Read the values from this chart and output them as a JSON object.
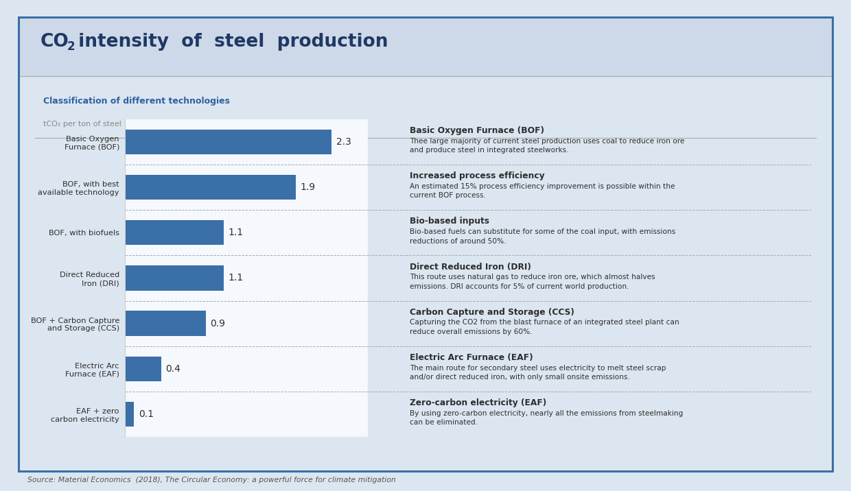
{
  "title_part1": "CO",
  "title_sub": "2",
  "title_part2": " intensity  of  steel  production",
  "subtitle": "Classification of different technologies",
  "subtitle2": "tCO₂ per ton of steel",
  "categories": [
    "Basic Oxygen\nFurnace (BOF)",
    "BOF, with best\navailable technology",
    "BOF, with biofuels",
    "Direct Reduced\nIron (DRI)",
    "BOF + Carbon Capture\nand Storage (CCS)",
    "Electric Arc\nFurnace (EAF)",
    "EAF + zero\ncarbon electricity"
  ],
  "values": [
    2.3,
    1.9,
    1.1,
    1.1,
    0.9,
    0.4,
    0.1
  ],
  "bar_color": "#3a6fa8",
  "bg_outer": "#dce6f0",
  "bg_inner": "#f5f8fc",
  "title_color": "#1f3864",
  "subtitle_color": "#2e5fa3",
  "subtitle2_color": "#888888",
  "source_text": "Source: Material Economics  (2018), The Circular Economy: a powerful force for climate mitigation",
  "right_titles": [
    "Basic Oxygen Furnace (BOF)",
    "Increased process efficiency",
    "Bio-based inputs",
    "Direct Reduced Iron (DRI)",
    "Carbon Capture and Storage (CCS)",
    "Electric Arc Furnace (EAF)",
    "Zero-carbon electricity (EAF)"
  ],
  "right_descriptions": [
    "Thee large majority of current steel production uses coal to reduce iron ore\nand produce steel in integrated steelworks.",
    "An estimated 15% process efficiency improvement is possible within the\ncurrent BOF process.",
    "Bio-based fuels can substitute for some of the coal input, with emissions\nreductions of around 50%.",
    "This route uses natural gas to reduce iron ore, which almost halves\nemissions. DRI accounts for 5% of current world production.",
    "Capturing the CO2 from the blast furnace of an integrated steel plant can\nreduce overall emissions by 60%.",
    "The main route for secondary steel uses electricity to melt steel scrap\nand/or direct reduced iron, with only small onsite emissions.",
    "By using zero-carbon electricity, nearly all the emissions from steelmaking\ncan be eliminated."
  ],
  "text_color_dark": "#2d2d2d",
  "divider_color": "#aaaaaa",
  "border_color": "#3a6fa8",
  "title_bg": "#cdd9e8"
}
